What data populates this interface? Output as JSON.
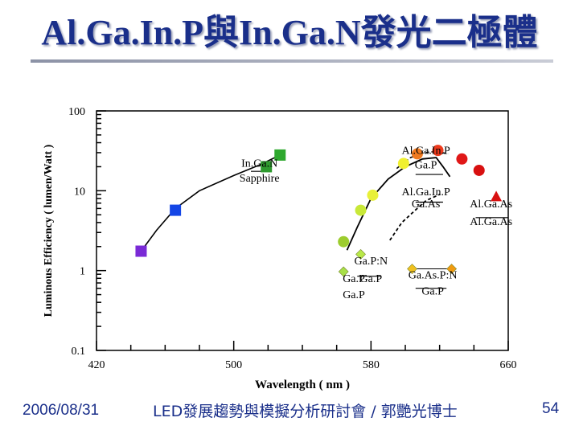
{
  "slide": {
    "title": "Al.Ga.In.P與In.Ga.N發光二極體",
    "footer_date": "2006/08/31",
    "footer_talk": "LED發展趨勢與模擬分析研討會 / 郭艷光博士",
    "page_number": "54",
    "title_color": "#1a2f8a"
  },
  "chart_data": {
    "type": "scatter",
    "xlabel": "Wavelength ( nm )",
    "ylabel": "Luminous Efficiency ( lumen/Watt )",
    "x_ticks": [
      "420",
      "500",
      "580",
      "660"
    ],
    "y_ticks": [
      "0.1",
      "1",
      "10",
      "100"
    ],
    "xlim": [
      420,
      660
    ],
    "ylim": [
      0.1,
      100
    ],
    "y_scale": "log",
    "series": [
      {
        "name": "In.Ga.N",
        "marker": "square",
        "points": [
          {
            "x": 446,
            "y": 1.75,
            "color": "#7a2ad6"
          },
          {
            "x": 466,
            "y": 5.7,
            "color": "#1446e6"
          },
          {
            "x": 519,
            "y": 20,
            "color": "#2e9a2e"
          },
          {
            "x": 527,
            "y": 28,
            "color": "#2ea82e"
          }
        ]
      },
      {
        "name": "Al.Ga.In.P",
        "marker": "circle",
        "points": [
          {
            "x": 564,
            "y": 2.3,
            "color": "#9ccc2e"
          },
          {
            "x": 574,
            "y": 5.7,
            "color": "#c8e838"
          },
          {
            "x": 581,
            "y": 8.8,
            "color": "#e8f038"
          },
          {
            "x": 599,
            "y": 22,
            "color": "#f0f030"
          },
          {
            "x": 607,
            "y": 29,
            "color": "#f07a20"
          },
          {
            "x": 619,
            "y": 32,
            "color": "#ee3a1c"
          },
          {
            "x": 633,
            "y": 25,
            "color": "#e01818"
          },
          {
            "x": 643,
            "y": 18,
            "color": "#d81010"
          }
        ]
      },
      {
        "name": "Ga.P:N",
        "marker": "diamond",
        "points": [
          {
            "x": 564,
            "y": 0.97,
            "color": "#a8e048"
          },
          {
            "x": 574,
            "y": 1.6,
            "color": "#b8e848"
          }
        ]
      },
      {
        "name": "Ga.As.P:N",
        "marker": "diamond",
        "points": [
          {
            "x": 604,
            "y": 1.05,
            "color": "#f0c020"
          },
          {
            "x": 627,
            "y": 1.05,
            "color": "#f09a10"
          }
        ]
      },
      {
        "name": "Al.Ga.As",
        "marker": "triangle",
        "points": [
          {
            "x": 653,
            "y": 8.5,
            "color": "#d81010"
          }
        ]
      }
    ],
    "annotations": [
      {
        "text": "In.Ga.N",
        "x": 515,
        "y": 20
      },
      {
        "text": "Sapphire",
        "x": 515,
        "y": 13
      },
      {
        "text": "Al.Ga.In.P",
        "x": 612,
        "y": 29
      },
      {
        "text": "Ga.P",
        "x": 612,
        "y": 19
      },
      {
        "text": "Al.Ga.In.P",
        "x": 612,
        "y": 8.8
      },
      {
        "text": "Ga.As",
        "x": 612,
        "y": 6.2
      },
      {
        "text": "Al.Ga.As",
        "x": 650,
        "y": 6.2
      },
      {
        "text": "Al.Ga.As",
        "x": 650,
        "y": 3.7
      },
      {
        "text": "Ga.P:N",
        "x": 580,
        "y": 1.2
      },
      {
        "text": "Ga.P",
        "x": 570,
        "y": 0.72
      },
      {
        "text": "Ga.P",
        "x": 580,
        "y": 0.72
      },
      {
        "text": "Ga.P",
        "x": 570,
        "y": 0.45
      },
      {
        "text": "Ga.As.P:N",
        "x": 616,
        "y": 0.8
      },
      {
        "text": "Ga.P",
        "x": 616,
        "y": 0.5
      }
    ],
    "grid": false,
    "legend": "none"
  }
}
